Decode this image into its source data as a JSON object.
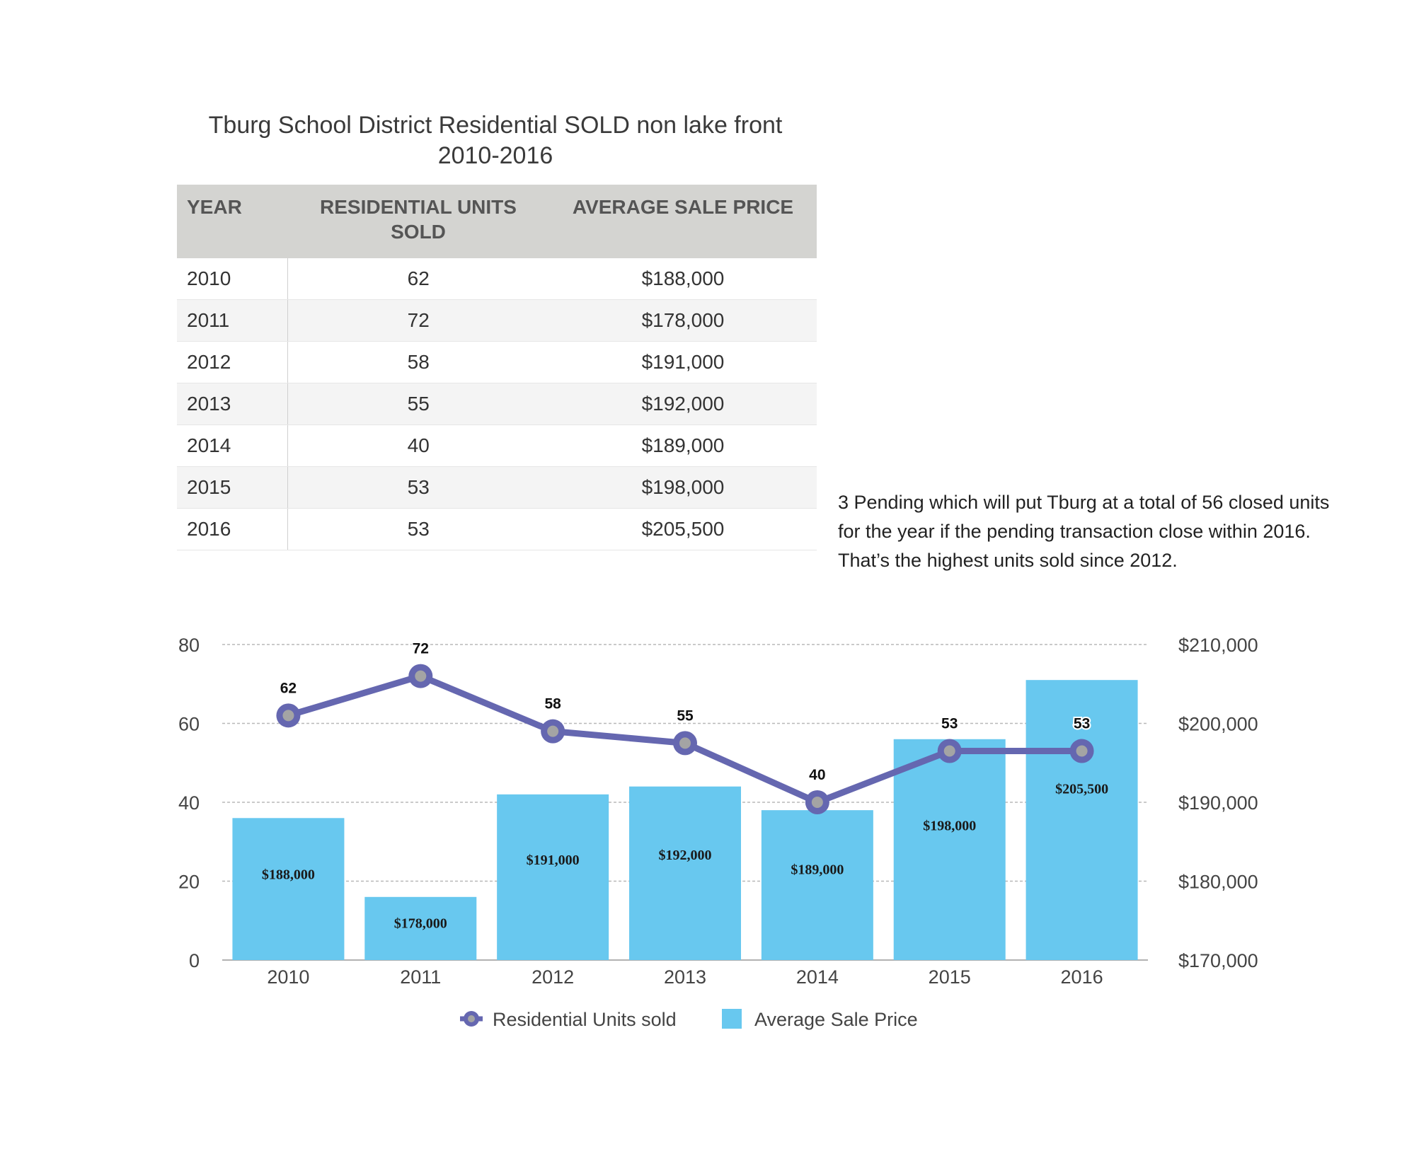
{
  "title_line1": "Tburg School District Residential SOLD non lake front",
  "title_line2": "2010-2016",
  "table": {
    "headers": [
      "YEAR",
      "RESIDENTIAL UNITS SOLD",
      "AVERAGE SALE PRICE"
    ],
    "rows": [
      [
        "2010",
        "62",
        "$188,000"
      ],
      [
        "2011",
        "72",
        "$178,000"
      ],
      [
        "2012",
        "58",
        "$191,000"
      ],
      [
        "2013",
        "55",
        "$192,000"
      ],
      [
        "2014",
        "40",
        "$189,000"
      ],
      [
        "2015",
        "53",
        "$198,000"
      ],
      [
        "2016",
        "53",
        "$205,500"
      ]
    ]
  },
  "note": {
    "line1": "3 Pending which will put Tburg at a total of 56 closed units",
    "line2": "for the year if the pending transaction close within 2016.",
    "line3": "That’s the highest units sold since 2012."
  },
  "chart_data": {
    "type": "bar",
    "categories": [
      "2010",
      "2011",
      "2012",
      "2013",
      "2014",
      "2015",
      "2016"
    ],
    "series": [
      {
        "name": "Residential Units sold",
        "type": "line",
        "axis": "left",
        "values": [
          62,
          72,
          58,
          55,
          40,
          53,
          53
        ],
        "labels": [
          "62",
          "72",
          "58",
          "55",
          "40",
          "53",
          "53"
        ],
        "color": "#6567b0"
      },
      {
        "name": "Average Sale Price",
        "type": "bar",
        "axis": "right",
        "values": [
          188000,
          178000,
          191000,
          192000,
          189000,
          198000,
          205500
        ],
        "labels": [
          "$188,000",
          "$178,000",
          "$191,000",
          "$192,000",
          "$189,000",
          "$198,000",
          "$205,500"
        ],
        "color": "#68c8ef"
      }
    ],
    "y_left": {
      "range": [
        0,
        80
      ],
      "ticks": [
        "80",
        "60",
        "40",
        "20",
        "0"
      ]
    },
    "y_right": {
      "range": [
        170000,
        210000
      ],
      "ticks": [
        "$210,000",
        "$200,000",
        "$190,000",
        "$180,000",
        "$170,000"
      ]
    },
    "grid": true,
    "legend": "bottom-center"
  }
}
